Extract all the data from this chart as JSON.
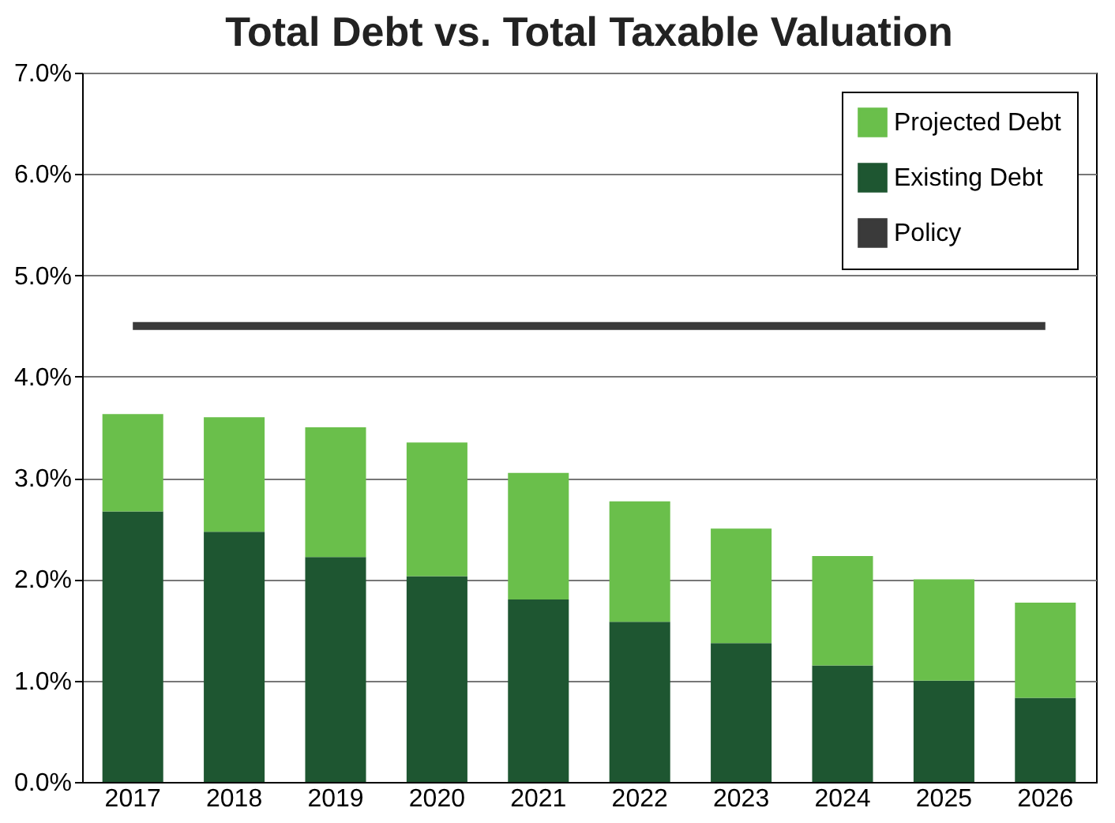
{
  "chart_data": {
    "type": "bar",
    "title": "Total Debt vs. Total Taxable Valuation",
    "categories": [
      "2017",
      "2018",
      "2019",
      "2020",
      "2021",
      "2022",
      "2023",
      "2024",
      "2025",
      "2026"
    ],
    "stacked": true,
    "series": [
      {
        "name": "Existing Debt",
        "color": "#1e5631",
        "values": [
          2.67,
          2.47,
          2.22,
          2.03,
          1.8,
          1.58,
          1.37,
          1.15,
          1.0,
          0.83
        ]
      },
      {
        "name": "Projected Debt",
        "color": "#6abf4b",
        "values": [
          0.96,
          1.13,
          1.28,
          1.32,
          1.25,
          1.19,
          1.13,
          1.08,
          1.0,
          0.94
        ]
      },
      {
        "name": "Policy",
        "type": "line",
        "color": "#3a3a3a",
        "values": [
          4.5,
          4.5,
          4.5,
          4.5,
          4.5,
          4.5,
          4.5,
          4.5,
          4.5,
          4.5
        ]
      }
    ],
    "ylim": [
      0,
      7
    ],
    "yticks": [
      {
        "value": 0,
        "label": "0.0%"
      },
      {
        "value": 1,
        "label": "1.0%"
      },
      {
        "value": 2,
        "label": "2.0%"
      },
      {
        "value": 3,
        "label": "3.0%"
      },
      {
        "value": 4,
        "label": "4.0%"
      },
      {
        "value": 5,
        "label": "5.0%"
      },
      {
        "value": 6,
        "label": "6.0%"
      },
      {
        "value": 7,
        "label": "7.0%"
      }
    ],
    "grid": "y",
    "legend": "top right"
  }
}
